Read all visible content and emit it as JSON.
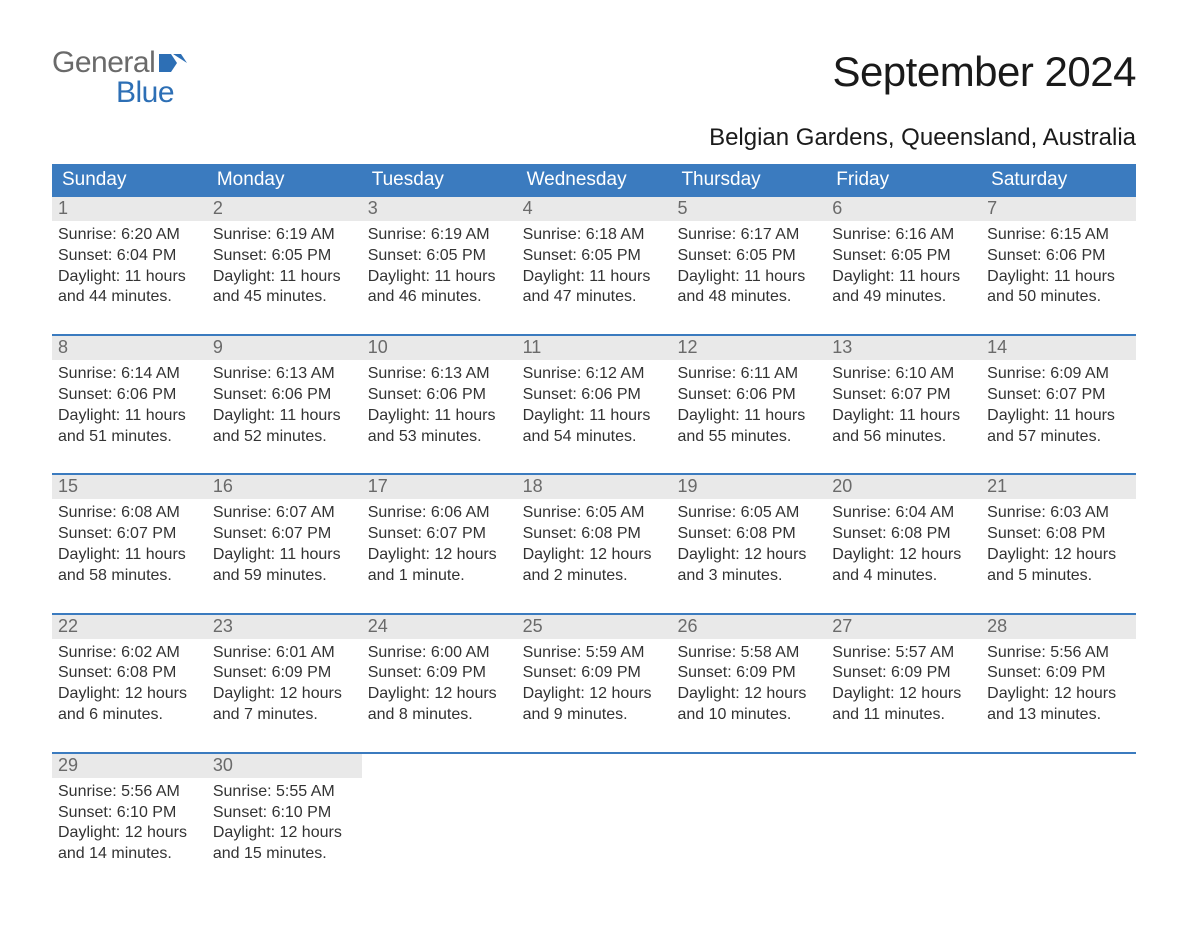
{
  "logo": {
    "word1": "General",
    "word2": "Blue",
    "flag_color": "#2d6fb5"
  },
  "title": "September 2024",
  "location": "Belgian Gardens, Queensland, Australia",
  "colors": {
    "header_bg": "#3b7bbf",
    "header_text": "#ffffff",
    "daynum_bg": "#e9e9e9",
    "daynum_text": "#6a6a6a",
    "body_text": "#333333",
    "week_border": "#3b7bbf",
    "logo_gray": "#6a6a6a",
    "logo_blue": "#2d6fb5"
  },
  "day_names": [
    "Sunday",
    "Monday",
    "Tuesday",
    "Wednesday",
    "Thursday",
    "Friday",
    "Saturday"
  ],
  "days": [
    {
      "n": "1",
      "sunrise": "6:20 AM",
      "sunset": "6:04 PM",
      "daylight": "11 hours and 44 minutes."
    },
    {
      "n": "2",
      "sunrise": "6:19 AM",
      "sunset": "6:05 PM",
      "daylight": "11 hours and 45 minutes."
    },
    {
      "n": "3",
      "sunrise": "6:19 AM",
      "sunset": "6:05 PM",
      "daylight": "11 hours and 46 minutes."
    },
    {
      "n": "4",
      "sunrise": "6:18 AM",
      "sunset": "6:05 PM",
      "daylight": "11 hours and 47 minutes."
    },
    {
      "n": "5",
      "sunrise": "6:17 AM",
      "sunset": "6:05 PM",
      "daylight": "11 hours and 48 minutes."
    },
    {
      "n": "6",
      "sunrise": "6:16 AM",
      "sunset": "6:05 PM",
      "daylight": "11 hours and 49 minutes."
    },
    {
      "n": "7",
      "sunrise": "6:15 AM",
      "sunset": "6:06 PM",
      "daylight": "11 hours and 50 minutes."
    },
    {
      "n": "8",
      "sunrise": "6:14 AM",
      "sunset": "6:06 PM",
      "daylight": "11 hours and 51 minutes."
    },
    {
      "n": "9",
      "sunrise": "6:13 AM",
      "sunset": "6:06 PM",
      "daylight": "11 hours and 52 minutes."
    },
    {
      "n": "10",
      "sunrise": "6:13 AM",
      "sunset": "6:06 PM",
      "daylight": "11 hours and 53 minutes."
    },
    {
      "n": "11",
      "sunrise": "6:12 AM",
      "sunset": "6:06 PM",
      "daylight": "11 hours and 54 minutes."
    },
    {
      "n": "12",
      "sunrise": "6:11 AM",
      "sunset": "6:06 PM",
      "daylight": "11 hours and 55 minutes."
    },
    {
      "n": "13",
      "sunrise": "6:10 AM",
      "sunset": "6:07 PM",
      "daylight": "11 hours and 56 minutes."
    },
    {
      "n": "14",
      "sunrise": "6:09 AM",
      "sunset": "6:07 PM",
      "daylight": "11 hours and 57 minutes."
    },
    {
      "n": "15",
      "sunrise": "6:08 AM",
      "sunset": "6:07 PM",
      "daylight": "11 hours and 58 minutes."
    },
    {
      "n": "16",
      "sunrise": "6:07 AM",
      "sunset": "6:07 PM",
      "daylight": "11 hours and 59 minutes."
    },
    {
      "n": "17",
      "sunrise": "6:06 AM",
      "sunset": "6:07 PM",
      "daylight": "12 hours and 1 minute."
    },
    {
      "n": "18",
      "sunrise": "6:05 AM",
      "sunset": "6:08 PM",
      "daylight": "12 hours and 2 minutes."
    },
    {
      "n": "19",
      "sunrise": "6:05 AM",
      "sunset": "6:08 PM",
      "daylight": "12 hours and 3 minutes."
    },
    {
      "n": "20",
      "sunrise": "6:04 AM",
      "sunset": "6:08 PM",
      "daylight": "12 hours and 4 minutes."
    },
    {
      "n": "21",
      "sunrise": "6:03 AM",
      "sunset": "6:08 PM",
      "daylight": "12 hours and 5 minutes."
    },
    {
      "n": "22",
      "sunrise": "6:02 AM",
      "sunset": "6:08 PM",
      "daylight": "12 hours and 6 minutes."
    },
    {
      "n": "23",
      "sunrise": "6:01 AM",
      "sunset": "6:09 PM",
      "daylight": "12 hours and 7 minutes."
    },
    {
      "n": "24",
      "sunrise": "6:00 AM",
      "sunset": "6:09 PM",
      "daylight": "12 hours and 8 minutes."
    },
    {
      "n": "25",
      "sunrise": "5:59 AM",
      "sunset": "6:09 PM",
      "daylight": "12 hours and 9 minutes."
    },
    {
      "n": "26",
      "sunrise": "5:58 AM",
      "sunset": "6:09 PM",
      "daylight": "12 hours and 10 minutes."
    },
    {
      "n": "27",
      "sunrise": "5:57 AM",
      "sunset": "6:09 PM",
      "daylight": "12 hours and 11 minutes."
    },
    {
      "n": "28",
      "sunrise": "5:56 AM",
      "sunset": "6:09 PM",
      "daylight": "12 hours and 13 minutes."
    },
    {
      "n": "29",
      "sunrise": "5:56 AM",
      "sunset": "6:10 PM",
      "daylight": "12 hours and 14 minutes."
    },
    {
      "n": "30",
      "sunrise": "5:55 AM",
      "sunset": "6:10 PM",
      "daylight": "12 hours and 15 minutes."
    }
  ],
  "labels": {
    "sunrise": "Sunrise:",
    "sunset": "Sunset:",
    "daylight": "Daylight:"
  },
  "start_offset": 0,
  "total_cells": 35
}
